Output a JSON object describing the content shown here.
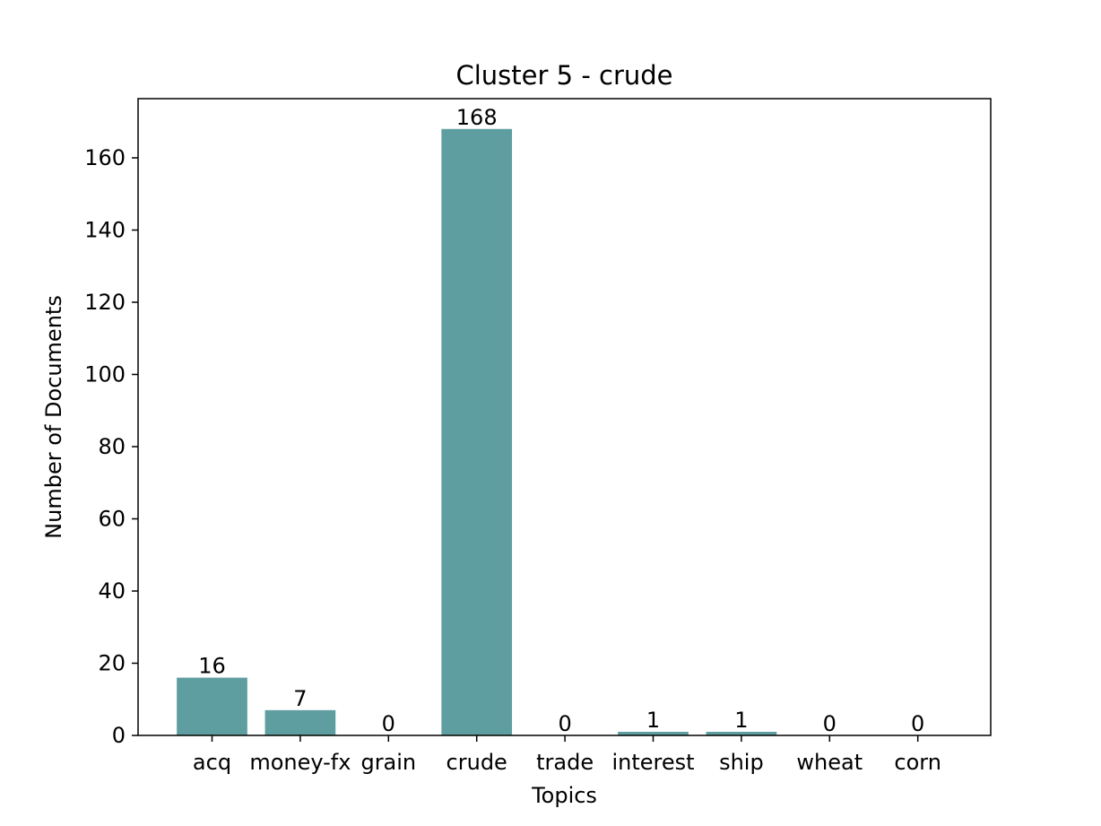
{
  "chart_data": {
    "type": "bar",
    "title": "Cluster 5 - crude",
    "xlabel": "Topics",
    "ylabel": "Number of Documents",
    "categories": [
      "acq",
      "money-fx",
      "grain",
      "crude",
      "trade",
      "interest",
      "ship",
      "wheat",
      "corn"
    ],
    "values": [
      16,
      7,
      0,
      168,
      0,
      1,
      1,
      0,
      0
    ],
    "data_labels": [
      "16",
      "7",
      "0",
      "168",
      "0",
      "1",
      "1",
      "0",
      "0"
    ],
    "ylim": [
      0,
      176.4
    ],
    "yticks": [
      0,
      20,
      40,
      60,
      80,
      100,
      120,
      140,
      160
    ],
    "bar_color": "#5f9ea0",
    "grid": false,
    "legend": false
  }
}
